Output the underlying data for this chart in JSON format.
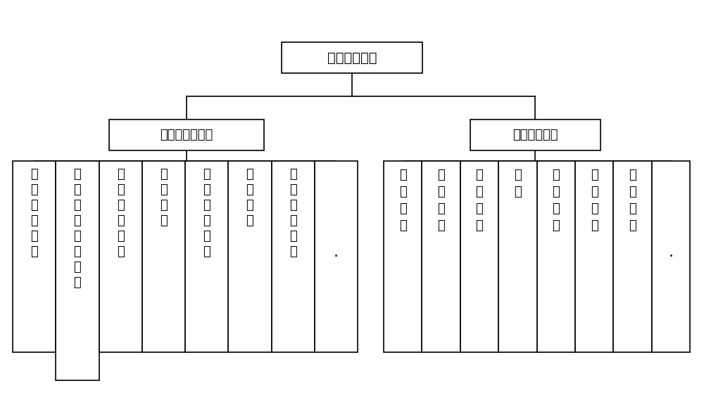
{
  "title_node": "直线电机测试",
  "level2_left": "专项复合性测试",
  "level2_right": "静态特性测试",
  "left_leaves": [
    "直流电阻测量",
    "绝缘极化指数测量",
    "绝缘电阻测量",
    "匝间测试",
    "工频耐压试验",
    "泄露电流",
    "介质损耗测量",
    "·"
  ],
  "right_leaves": [
    "功率因素",
    "功率特性",
    "温升试验",
    "效率",
    "推力测试",
    "气隙特性",
    "阻抗测量",
    "·"
  ],
  "bg_color": "#ffffff",
  "box_edge_color": "#000000",
  "text_color": "#000000",
  "font_size_root": 14,
  "font_size_l2": 13,
  "font_size_leaf": 13
}
